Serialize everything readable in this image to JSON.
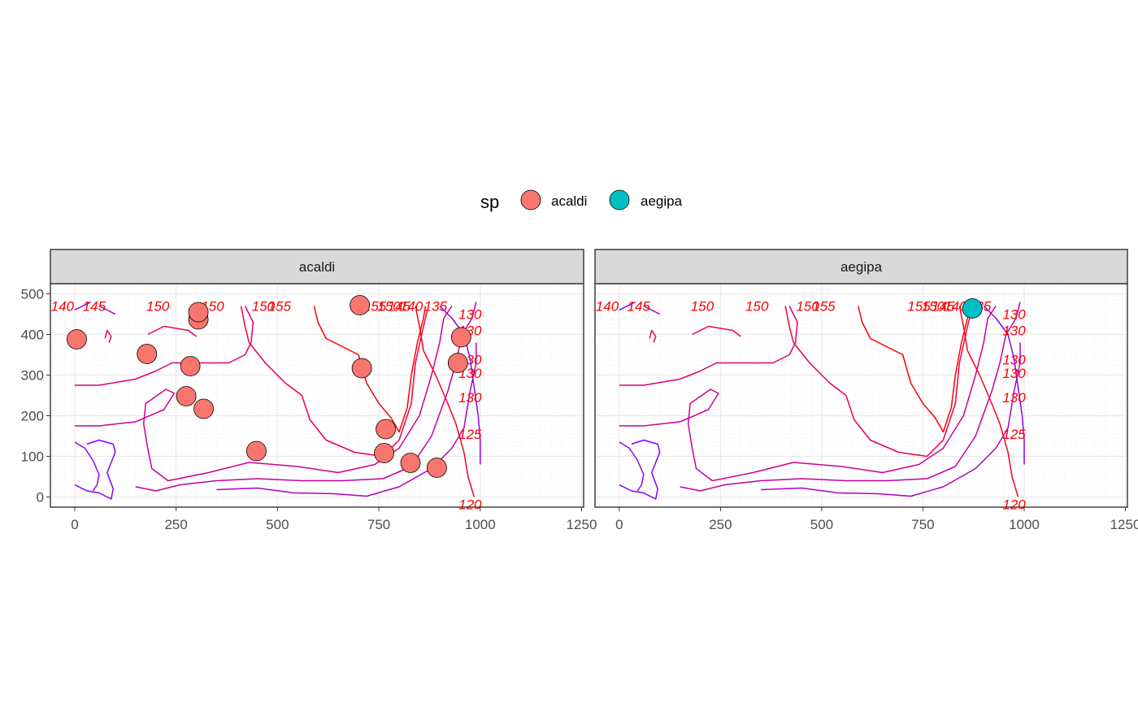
{
  "chart_data": {
    "type": "scatter",
    "legend": {
      "title": "sp",
      "position": "top",
      "entries": [
        {
          "name": "acaldi",
          "color": "#F8766D"
        },
        {
          "name": "aegipa",
          "color": "#00BFC4"
        }
      ]
    },
    "xlim": [
      -60,
      1255
    ],
    "ylim": [
      -25,
      525
    ],
    "x_ticks": [
      0,
      250,
      500,
      750,
      1000,
      1250
    ],
    "y_ticks": [
      0,
      100,
      200,
      300,
      400,
      500
    ],
    "grid": true,
    "panels": [
      {
        "strip": "acaldi",
        "color": "#F8766D",
        "points": [
          {
            "x": 5,
            "y": 388
          },
          {
            "x": 178,
            "y": 352
          },
          {
            "x": 285,
            "y": 322
          },
          {
            "x": 275,
            "y": 248
          },
          {
            "x": 318,
            "y": 217
          },
          {
            "x": 305,
            "y": 437
          },
          {
            "x": 305,
            "y": 455
          },
          {
            "x": 448,
            "y": 113
          },
          {
            "x": 703,
            "y": 472
          },
          {
            "x": 708,
            "y": 317
          },
          {
            "x": 767,
            "y": 167
          },
          {
            "x": 763,
            "y": 108
          },
          {
            "x": 828,
            "y": 84
          },
          {
            "x": 893,
            "y": 72
          },
          {
            "x": 953,
            "y": 393
          },
          {
            "x": 945,
            "y": 330
          }
        ]
      },
      {
        "strip": "aegipa",
        "color": "#00BFC4",
        "points": [
          {
            "x": 872,
            "y": 464
          }
        ]
      }
    ],
    "contour_labels": [
      {
        "text": "140",
        "x": -30,
        "y": 470
      },
      {
        "text": "145",
        "x": 48,
        "y": 470
      },
      {
        "text": "150",
        "x": 205,
        "y": 470
      },
      {
        "text": "150",
        "x": 340,
        "y": 470
      },
      {
        "text": "150",
        "x": 465,
        "y": 470
      },
      {
        "text": "155",
        "x": 505,
        "y": 470
      },
      {
        "text": "155",
        "x": 740,
        "y": 470
      },
      {
        "text": "150",
        "x": 775,
        "y": 470
      },
      {
        "text": "145",
        "x": 800,
        "y": 470
      },
      {
        "text": "140",
        "x": 830,
        "y": 470
      },
      {
        "text": "135",
        "x": 890,
        "y": 470
      },
      {
        "text": "130",
        "x": 975,
        "y": 450
      },
      {
        "text": "130",
        "x": 975,
        "y": 410
      },
      {
        "text": "130",
        "x": 975,
        "y": 338
      },
      {
        "text": "130",
        "x": 975,
        "y": 305
      },
      {
        "text": "130",
        "x": 975,
        "y": 245
      },
      {
        "text": "125",
        "x": 975,
        "y": 155
      },
      {
        "text": "120",
        "x": 975,
        "y": -18
      }
    ]
  }
}
